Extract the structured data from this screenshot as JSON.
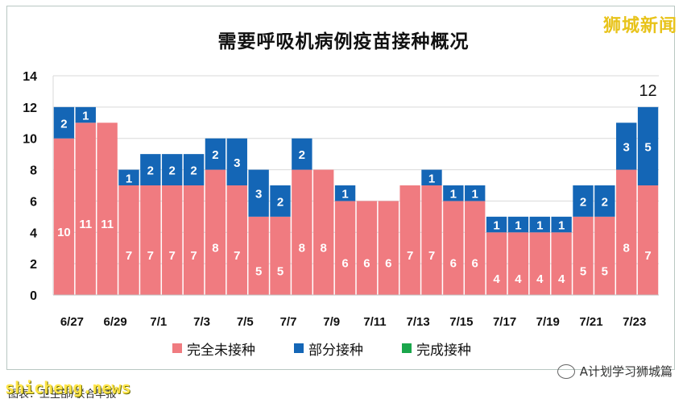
{
  "logo": "狮城新闻",
  "footer": {
    "site": "shicheng.news",
    "caption": "图表：卫生部/联合早报",
    "account": "A计划学习狮城篇"
  },
  "colors": {
    "unvaccinated": "#f07b80",
    "partial": "#1466b6",
    "full": "#1aa64b"
  },
  "chart_data": {
    "type": "bar",
    "stacked": true,
    "title": "需要呼吸机病例疫苗接种概况",
    "ylim": [
      0,
      14
    ],
    "yticks": [
      0,
      2,
      4,
      6,
      8,
      10,
      12,
      14
    ],
    "grid": true,
    "categories": [
      "6/27",
      "6/28",
      "6/29",
      "6/30",
      "7/1",
      "7/2",
      "7/3",
      "7/4",
      "7/5",
      "7/6",
      "7/7",
      "7/8",
      "7/9",
      "7/10",
      "7/11",
      "7/12",
      "7/13",
      "7/14",
      "7/15",
      "7/16",
      "7/17",
      "7/18",
      "7/19",
      "7/20",
      "7/21",
      "7/22",
      "7/23",
      "7/24"
    ],
    "xtick_labels": [
      "6/27",
      "6/29",
      "7/1",
      "7/3",
      "7/5",
      "7/7",
      "7/9",
      "7/11",
      "7/13",
      "7/15",
      "7/17",
      "7/19",
      "7/21",
      "7/23"
    ],
    "series": [
      {
        "name": "完全未接种",
        "values": [
          10,
          11,
          11,
          7,
          7,
          7,
          7,
          8,
          7,
          5,
          5,
          8,
          8,
          6,
          6,
          6,
          7,
          7,
          6,
          6,
          4,
          4,
          4,
          4,
          5,
          5,
          8,
          7
        ]
      },
      {
        "name": "部分接种",
        "values": [
          2,
          1,
          0,
          1,
          2,
          2,
          2,
          2,
          3,
          3,
          2,
          2,
          0,
          1,
          0,
          0,
          0,
          1,
          1,
          1,
          1,
          1,
          1,
          1,
          2,
          2,
          3,
          5
        ]
      },
      {
        "name": "完成接种",
        "values": [
          0,
          0,
          0,
          0,
          0,
          0,
          0,
          0,
          0,
          0,
          0,
          0,
          0,
          0,
          0,
          0,
          0,
          0,
          0,
          0,
          0,
          0,
          0,
          0,
          0,
          0,
          0,
          0
        ]
      }
    ],
    "total_label": {
      "category": "7/24",
      "value": 12
    },
    "legend": "bottom"
  }
}
